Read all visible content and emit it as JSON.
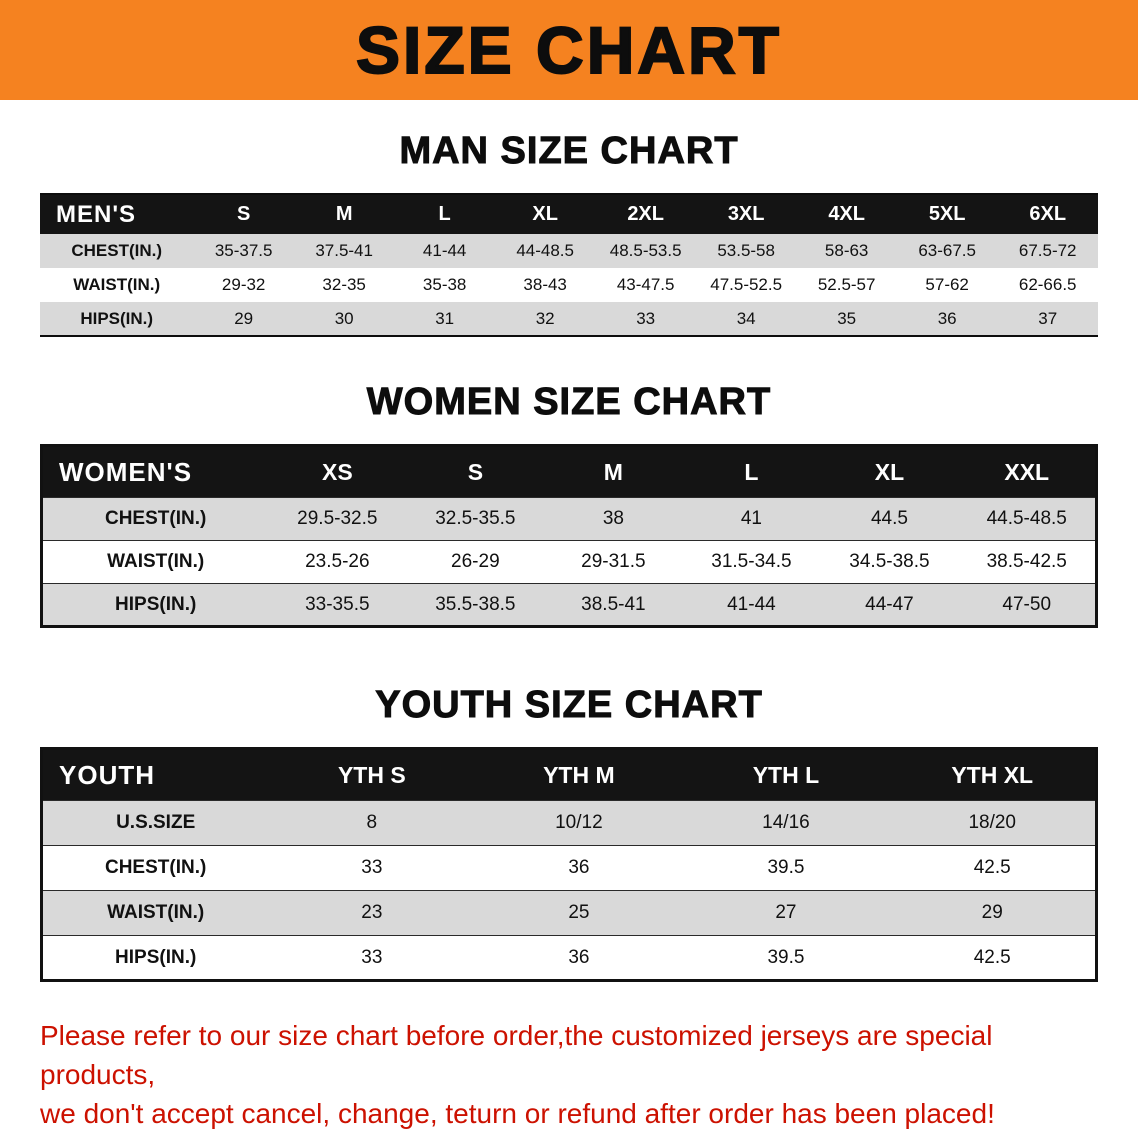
{
  "banner": {
    "title": "SIZE CHART"
  },
  "sections": [
    {
      "id": "men",
      "heading": "MAN SIZE CHART",
      "table": {
        "header": [
          "MEN'S",
          "S",
          "M",
          "L",
          "XL",
          "2XL",
          "3XL",
          "4XL",
          "5XL",
          "6XL"
        ],
        "rows": [
          {
            "label": "CHEST(IN.)",
            "values": [
              "35-37.5",
              "37.5-41",
              "41-44",
              "44-48.5",
              "48.5-53.5",
              "53.5-58",
              "58-63",
              "63-67.5",
              "67.5-72"
            ]
          },
          {
            "label": "WAIST(IN.)",
            "values": [
              "29-32",
              "32-35",
              "35-38",
              "38-43",
              "43-47.5",
              "47.5-52.5",
              "52.5-57",
              "57-62",
              "62-66.5"
            ]
          },
          {
            "label": "HIPS(IN.)",
            "values": [
              "29",
              "30",
              "31",
              "32",
              "33",
              "34",
              "35",
              "36",
              "37"
            ]
          }
        ]
      }
    },
    {
      "id": "women",
      "heading": "WOMEN SIZE CHART",
      "table": {
        "header": [
          "WOMEN'S",
          "XS",
          "S",
          "M",
          "L",
          "XL",
          "XXL"
        ],
        "rows": [
          {
            "label": "CHEST(IN.)",
            "values": [
              "29.5-32.5",
              "32.5-35.5",
              "38",
              "41",
              "44.5",
              "44.5-48.5"
            ]
          },
          {
            "label": "WAIST(IN.)",
            "values": [
              "23.5-26",
              "26-29",
              "29-31.5",
              "31.5-34.5",
              "34.5-38.5",
              "38.5-42.5"
            ]
          },
          {
            "label": "HIPS(IN.)",
            "values": [
              "33-35.5",
              "35.5-38.5",
              "38.5-41",
              "41-44",
              "44-47",
              "47-50"
            ]
          }
        ]
      }
    },
    {
      "id": "youth",
      "heading": "YOUTH SIZE CHART",
      "table": {
        "header": [
          "YOUTH",
          "YTH S",
          "YTH M",
          "YTH L",
          "YTH XL"
        ],
        "rows": [
          {
            "label": "U.S.SIZE",
            "values": [
              "8",
              "10/12",
              "14/16",
              "18/20"
            ]
          },
          {
            "label": "CHEST(IN.)",
            "values": [
              "33",
              "36",
              "39.5",
              "42.5"
            ]
          },
          {
            "label": "WAIST(IN.)",
            "values": [
              "23",
              "25",
              "27",
              "29"
            ]
          },
          {
            "label": "HIPS(IN.)",
            "values": [
              "33",
              "36",
              "39.5",
              "42.5"
            ]
          }
        ]
      }
    }
  ],
  "footer": {
    "line1": "Please refer to our size chart before order,the customized jerseys are special products,",
    "line2": "we don't accept cancel, change, teturn or refund after order has been placed!"
  },
  "colors": {
    "banner_bg": "#F58220",
    "header_bg": "#141414",
    "row_alt_bg": "#D9D9D9",
    "footer_text": "#CC1100"
  }
}
